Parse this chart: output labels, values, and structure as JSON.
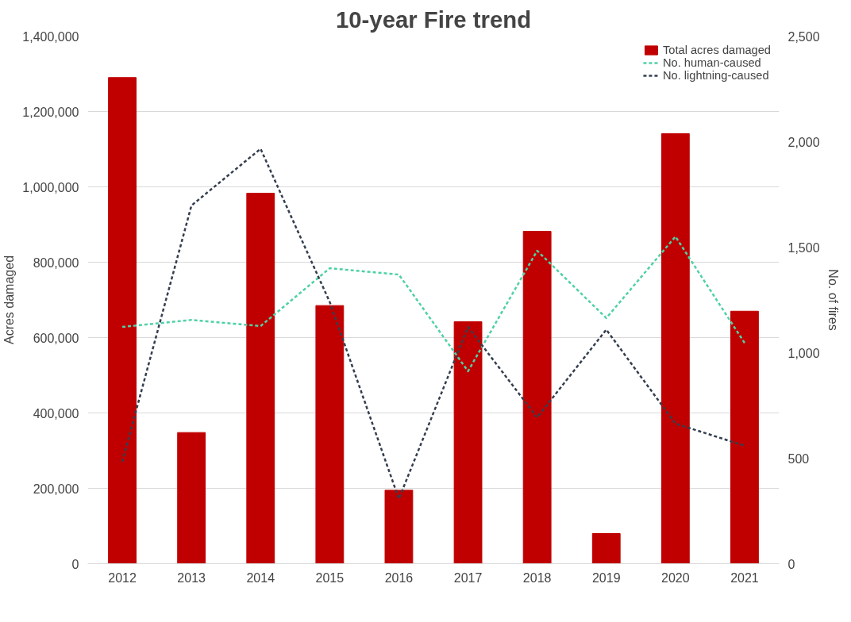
{
  "chart_data": {
    "type": "bar",
    "title": "10-year Fire trend",
    "ylabel": "Acres damaged",
    "y2label": "No. of fires",
    "categories": [
      "2012",
      "2013",
      "2014",
      "2015",
      "2016",
      "2017",
      "2018",
      "2019",
      "2020",
      "2021"
    ],
    "series": [
      {
        "name": "Total acres damaged",
        "color": "#c00000",
        "values": [
          1290000,
          348000,
          983000,
          685000,
          195000,
          642000,
          882000,
          80000,
          1141000,
          670000
        ]
      },
      {
        "name": "No. human-caused",
        "type": "line",
        "axis": "y2",
        "color": "#4fd1a5",
        "line_style": "dashed",
        "values": [
          1122,
          1155,
          1126,
          1400,
          1370,
          912,
          1483,
          1164,
          1550,
          1046
        ]
      },
      {
        "name": "No. lightning-caused",
        "type": "line",
        "axis": "y2",
        "color": "#333f4f",
        "line_style": "dashed",
        "values": [
          483,
          1697,
          1966,
          1240,
          307,
          1122,
          693,
          1109,
          664,
          559
        ]
      }
    ],
    "ylim": [
      0,
      1400000
    ],
    "yticks": [
      0,
      {
        "value": 200000,
        "label": "200,000"
      },
      {
        "value": 400000,
        "label": "400,000"
      },
      {
        "value": 600000,
        "label": "600,000"
      },
      {
        "value": 800000,
        "label": "800,000"
      },
      {
        "value": 1000000,
        "label": "1,000,000"
      },
      {
        "value": 1200000,
        "label": "1,200,000"
      },
      {
        "value": 1400000,
        "label": "1,400,000"
      }
    ],
    "y2lim": [
      0,
      2500
    ],
    "y2ticks": [
      0,
      500,
      {
        "value": 1000,
        "label": "1,000"
      },
      {
        "value": 1500,
        "label": "1,500"
      },
      {
        "value": 2000,
        "label": "2,000"
      },
      {
        "value": 2500,
        "label": "2,500"
      }
    ],
    "grid": "y",
    "legend": "top right"
  }
}
